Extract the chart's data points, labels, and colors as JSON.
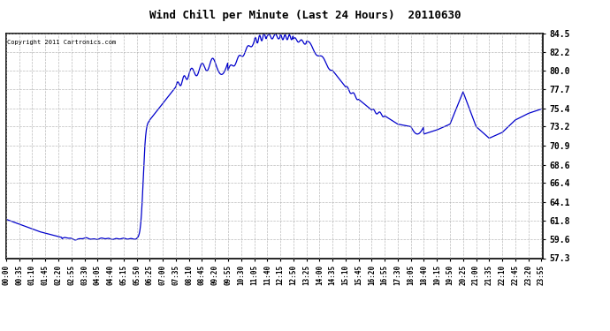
{
  "title": "Wind Chill per Minute (Last 24 Hours)  20110630",
  "copyright": "Copyright 2011 Cartronics.com",
  "line_color": "#0000cc",
  "background_color": "#ffffff",
  "grid_color": "#aaaaaa",
  "ylim": [
    57.3,
    84.5
  ],
  "yticks": [
    57.3,
    59.6,
    61.8,
    64.1,
    66.4,
    68.6,
    70.9,
    73.2,
    75.4,
    77.7,
    80.0,
    82.2,
    84.5
  ],
  "xtick_labels": [
    "00:00",
    "00:35",
    "01:10",
    "01:45",
    "02:20",
    "02:55",
    "03:30",
    "04:05",
    "04:40",
    "05:15",
    "05:50",
    "06:25",
    "07:00",
    "07:35",
    "08:10",
    "08:45",
    "09:20",
    "09:55",
    "10:30",
    "11:05",
    "11:40",
    "12:15",
    "12:50",
    "13:25",
    "14:00",
    "14:35",
    "15:10",
    "15:45",
    "16:20",
    "16:55",
    "17:30",
    "18:05",
    "18:40",
    "19:15",
    "19:50",
    "20:25",
    "21:00",
    "21:35",
    "22:10",
    "22:45",
    "23:20",
    "23:55"
  ]
}
